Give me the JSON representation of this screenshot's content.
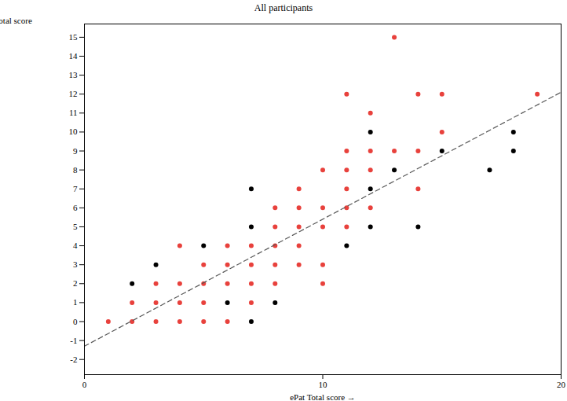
{
  "chart_data": {
    "type": "scatter",
    "title": "All participants",
    "x_label": "ePat Total score",
    "y_label": "Abbey total score",
    "xlim": [
      0,
      20
    ],
    "ylim": [
      -2.8,
      15.7
    ],
    "xticks": [
      0,
      10,
      20
    ],
    "yticks": [
      -2,
      -1,
      0,
      1,
      2,
      3,
      4,
      5,
      6,
      7,
      8,
      9,
      10,
      11,
      12,
      13,
      14,
      15
    ],
    "grid": false,
    "series": [
      {
        "type": "scatter",
        "marker": "circle",
        "color": "#e8413c",
        "x": [
          1,
          2,
          2,
          3,
          3,
          3,
          4,
          4,
          4,
          4,
          5,
          5,
          5,
          5,
          6,
          6,
          6,
          6,
          7,
          7,
          7,
          7,
          8,
          8,
          8,
          8,
          8,
          9,
          9,
          9,
          9,
          9,
          10,
          10,
          10,
          10,
          10,
          11,
          11,
          11,
          11,
          11,
          11,
          12,
          12,
          12,
          12,
          13,
          13,
          14,
          14,
          14,
          15,
          15,
          19
        ],
        "values": [
          0,
          1,
          0,
          2,
          1,
          0,
          4,
          2,
          1,
          0,
          3,
          2,
          1,
          0,
          4,
          3,
          2,
          0,
          4,
          3,
          2,
          1,
          6,
          5,
          4,
          3,
          2,
          7,
          6,
          5,
          4,
          3,
          8,
          6,
          5,
          3,
          2,
          12,
          9,
          8,
          7,
          6,
          5,
          11,
          9,
          8,
          6,
          15,
          9,
          12,
          9,
          7,
          12,
          10,
          12
        ]
      },
      {
        "type": "scatter",
        "marker": "circle",
        "color": "#000000",
        "x": [
          2,
          3,
          5,
          6,
          7,
          7,
          7,
          8,
          11,
          12,
          12,
          12,
          13,
          14,
          15,
          17,
          18,
          18
        ],
        "values": [
          2,
          3,
          4,
          1,
          7,
          5,
          0,
          1,
          4,
          10,
          7,
          5,
          8,
          5,
          9,
          8,
          10,
          9
        ]
      },
      {
        "type": "line",
        "line_style": "dashed",
        "color": "#555555",
        "x": [
          0,
          20
        ],
        "values": [
          -1.3,
          12.1
        ]
      }
    ]
  }
}
